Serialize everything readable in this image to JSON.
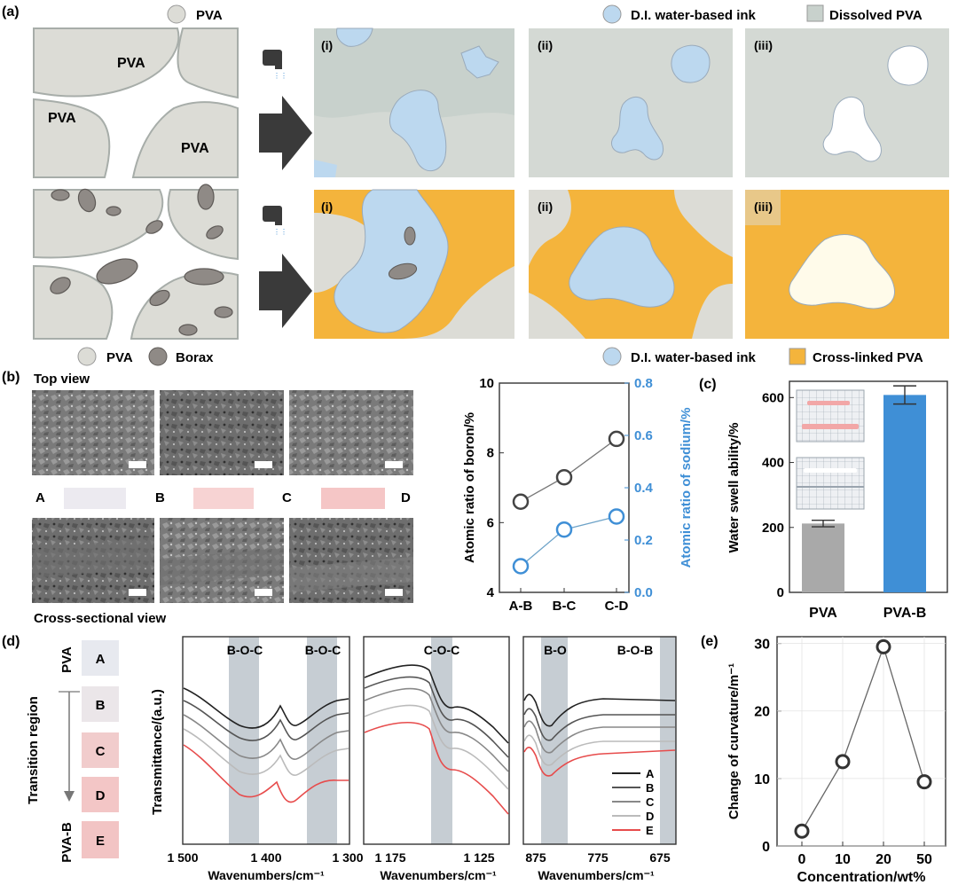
{
  "panel_labels": {
    "a": "(a)",
    "b": "(b)",
    "c": "(c)",
    "d": "(d)",
    "e": "(e)"
  },
  "panel_a": {
    "top_legend_pva": "PVA",
    "top_legend_ink": "D.I. water-based ink",
    "top_legend_dissolved": "Dissolved PVA",
    "region_label": "PVA",
    "bottom_legend_pva": "PVA",
    "bottom_legend_borax": "Borax",
    "bottom_legend_ink": "D.I. water-based ink",
    "bottom_legend_crosslinked": "Cross-linked PVA",
    "stages": [
      "(i)",
      "(ii)",
      "(iii)"
    ]
  },
  "panel_b": {
    "top_view": "Top view",
    "cross_view": "Cross-sectional view",
    "strip_labels": [
      "A",
      "B",
      "C",
      "D"
    ]
  },
  "panel_d": {
    "sample_pva": "PVA",
    "sample_pvab": "PVA-B",
    "transition": "Transition region",
    "samples": [
      "A",
      "B",
      "C",
      "D",
      "E"
    ],
    "ylabel": "Transmittance/(a.u.)",
    "xlabel": "Wavenumbers/cm⁻¹",
    "bands1": [
      "B-O-C",
      "B-O-C"
    ],
    "bands2": [
      "C-O-C"
    ],
    "bands3": [
      "B-O",
      "B-O-B"
    ],
    "ticks1": [
      "1 500",
      "1 400",
      "1 300"
    ],
    "ticks2": [
      "1 175",
      "1 125"
    ],
    "ticks3": [
      "875",
      "775",
      "675"
    ],
    "legend": [
      "A",
      "B",
      "C",
      "D",
      "E"
    ]
  },
  "colors": {
    "pva": "#dcdcd6",
    "ink": "#bcd8ef",
    "crosslinked": "#f4b43c",
    "borax": "#8f8a86",
    "blue": "#3f8fd6",
    "gray_bar": "#a9a9a9",
    "red": "#e74c4c"
  },
  "chart_data": [
    {
      "type": "line",
      "title": "",
      "categories": [
        "A-B",
        "B-C",
        "C-D"
      ],
      "series": [
        {
          "name": "Atomic ratio of boron",
          "axis": "left",
          "values": [
            6.6,
            7.3,
            8.4
          ]
        },
        {
          "name": "Atomic ratio of sodium",
          "axis": "right",
          "values": [
            0.1,
            0.24,
            0.29
          ]
        }
      ],
      "ylabel": "Atomic ratio of boron/%",
      "ylabel_right": "Atomic ratio of sodium/%",
      "ylim": [
        4,
        10
      ],
      "ylim_right": [
        0,
        0.8
      ],
      "yticks": [
        "4",
        "6",
        "8",
        "10"
      ],
      "yticks_right": [
        "0.0",
        "0.2",
        "0.4",
        "0.6",
        "0.8"
      ]
    },
    {
      "type": "bar",
      "title": "",
      "categories": [
        "PVA",
        "PVA-B"
      ],
      "values": [
        212,
        608
      ],
      "errors": [
        10,
        28
      ],
      "ylabel": "Water swell ability/%",
      "ylim": [
        0,
        650
      ],
      "yticks": [
        "0",
        "200",
        "400",
        "600"
      ]
    },
    {
      "type": "line",
      "title": "",
      "x": [
        "0",
        "10",
        "20",
        "50"
      ],
      "values": [
        2.2,
        12.5,
        29.5,
        9.5
      ],
      "xlabel": "Concentration/wt%",
      "ylabel": "Change of curvature/m⁻¹",
      "ylim": [
        0,
        31
      ],
      "yticks": [
        "0",
        "10",
        "20",
        "30"
      ]
    }
  ]
}
